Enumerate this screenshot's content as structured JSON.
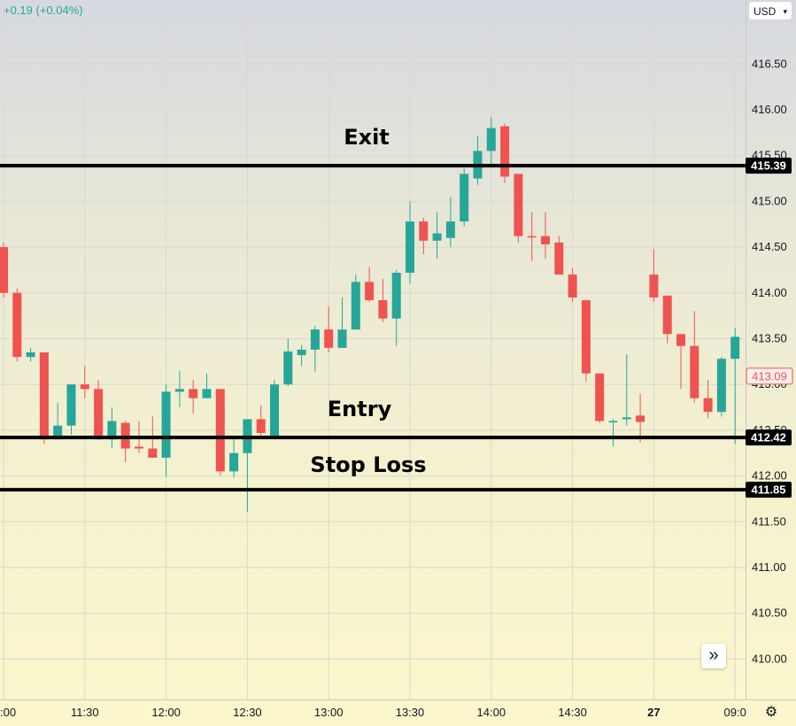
{
  "legend": {
    "change": "+0.19 (+0.04%)"
  },
  "currency": {
    "label": "USD"
  },
  "colors": {
    "up": "#26a69a",
    "down": "#ef5350",
    "level_line": "#000000",
    "current_price": "#ef5350"
  },
  "icons": {
    "scroll": "double-chevron-right-icon",
    "settings": "gear-icon"
  },
  "chart_data": {
    "type": "candlestick",
    "y_ticks": [
      "416.50",
      "416.00",
      "415.50",
      "415.00",
      "414.50",
      "414.00",
      "413.50",
      "413.00",
      "412.50",
      "412.00",
      "411.50",
      "411.00",
      "410.50",
      "410.00"
    ],
    "ylim": [
      409.6,
      417.0
    ],
    "x_ticks": [
      {
        "label": ":00",
        "index": 0
      },
      {
        "label": "11:30",
        "index": 6
      },
      {
        "label": "12:00",
        "index": 12
      },
      {
        "label": "12:30",
        "index": 18
      },
      {
        "label": "13:00",
        "index": 24
      },
      {
        "label": "13:30",
        "index": 30
      },
      {
        "label": "14:00",
        "index": 36
      },
      {
        "label": "14:30",
        "index": 42
      },
      {
        "label": "27",
        "index": 48
      },
      {
        "label": "09:0",
        "index": 54
      }
    ],
    "candles": [
      {
        "i": 0,
        "o": 414.5,
        "h": 414.55,
        "l": 413.95,
        "c": 414.0
      },
      {
        "i": 1,
        "o": 414.0,
        "h": 414.05,
        "l": 413.25,
        "c": 413.3
      },
      {
        "i": 2,
        "o": 413.3,
        "h": 413.4,
        "l": 413.25,
        "c": 413.35
      },
      {
        "i": 3,
        "o": 413.35,
        "h": 413.35,
        "l": 412.35,
        "c": 412.4
      },
      {
        "i": 4,
        "o": 412.4,
        "h": 412.8,
        "l": 412.4,
        "c": 412.55
      },
      {
        "i": 5,
        "o": 412.55,
        "h": 413.0,
        "l": 412.45,
        "c": 413.0
      },
      {
        "i": 6,
        "o": 413.0,
        "h": 413.2,
        "l": 412.85,
        "c": 412.95
      },
      {
        "i": 7,
        "o": 412.95,
        "h": 413.05,
        "l": 412.4,
        "c": 412.4
      },
      {
        "i": 8,
        "o": 412.4,
        "h": 412.75,
        "l": 412.3,
        "c": 412.6
      },
      {
        "i": 9,
        "o": 412.58,
        "h": 412.6,
        "l": 412.15,
        "c": 412.3
      },
      {
        "i": 10,
        "o": 412.32,
        "h": 412.6,
        "l": 412.25,
        "c": 412.3
      },
      {
        "i": 11,
        "o": 412.3,
        "h": 412.65,
        "l": 412.2,
        "c": 412.2
      },
      {
        "i": 12,
        "o": 412.2,
        "h": 413.0,
        "l": 411.99,
        "c": 412.92
      },
      {
        "i": 13,
        "o": 412.92,
        "h": 413.15,
        "l": 412.75,
        "c": 412.95
      },
      {
        "i": 14,
        "o": 412.95,
        "h": 413.05,
        "l": 412.68,
        "c": 412.85
      },
      {
        "i": 15,
        "o": 412.85,
        "h": 413.12,
        "l": 412.85,
        "c": 412.95
      },
      {
        "i": 16,
        "o": 412.95,
        "h": 412.95,
        "l": 412.0,
        "c": 412.05
      },
      {
        "i": 17,
        "o": 412.05,
        "h": 412.42,
        "l": 411.98,
        "c": 412.25
      },
      {
        "i": 18,
        "o": 412.25,
        "h": 412.62,
        "l": 411.61,
        "c": 412.62
      },
      {
        "i": 19,
        "o": 412.62,
        "h": 412.77,
        "l": 412.42,
        "c": 412.47
      },
      {
        "i": 20,
        "o": 412.42,
        "h": 413.05,
        "l": 412.42,
        "c": 413.0
      },
      {
        "i": 21,
        "o": 413.0,
        "h": 413.5,
        "l": 412.98,
        "c": 413.36
      },
      {
        "i": 22,
        "o": 413.32,
        "h": 413.43,
        "l": 413.2,
        "c": 413.38
      },
      {
        "i": 23,
        "o": 413.38,
        "h": 413.64,
        "l": 413.14,
        "c": 413.6
      },
      {
        "i": 24,
        "o": 413.6,
        "h": 413.85,
        "l": 413.35,
        "c": 413.4
      },
      {
        "i": 25,
        "o": 413.4,
        "h": 413.95,
        "l": 413.4,
        "c": 413.6
      },
      {
        "i": 26,
        "o": 413.6,
        "h": 414.2,
        "l": 413.6,
        "c": 414.12
      },
      {
        "i": 27,
        "o": 414.12,
        "h": 414.28,
        "l": 413.9,
        "c": 413.92
      },
      {
        "i": 28,
        "o": 413.92,
        "h": 414.15,
        "l": 413.68,
        "c": 413.72
      },
      {
        "i": 29,
        "o": 413.72,
        "h": 414.25,
        "l": 413.42,
        "c": 414.22
      },
      {
        "i": 30,
        "o": 414.22,
        "h": 415.0,
        "l": 414.1,
        "c": 414.78
      },
      {
        "i": 31,
        "o": 414.78,
        "h": 414.82,
        "l": 414.42,
        "c": 414.57
      },
      {
        "i": 32,
        "o": 414.57,
        "h": 414.88,
        "l": 414.37,
        "c": 414.65
      },
      {
        "i": 33,
        "o": 414.6,
        "h": 415.05,
        "l": 414.5,
        "c": 414.78
      },
      {
        "i": 34,
        "o": 414.78,
        "h": 415.36,
        "l": 414.73,
        "c": 415.3
      },
      {
        "i": 35,
        "o": 415.25,
        "h": 415.72,
        "l": 415.18,
        "c": 415.55
      },
      {
        "i": 36,
        "o": 415.55,
        "h": 415.92,
        "l": 415.4,
        "c": 415.8
      },
      {
        "i": 37,
        "o": 415.82,
        "h": 415.85,
        "l": 415.2,
        "c": 415.27
      },
      {
        "i": 38,
        "o": 415.3,
        "h": 415.3,
        "l": 414.55,
        "c": 414.62
      },
      {
        "i": 39,
        "o": 414.62,
        "h": 414.88,
        "l": 414.35,
        "c": 414.61
      },
      {
        "i": 40,
        "o": 414.62,
        "h": 414.88,
        "l": 414.37,
        "c": 414.53
      },
      {
        "i": 41,
        "o": 414.55,
        "h": 414.62,
        "l": 414.2,
        "c": 414.2
      },
      {
        "i": 42,
        "o": 414.2,
        "h": 414.27,
        "l": 413.9,
        "c": 413.95
      },
      {
        "i": 43,
        "o": 413.92,
        "h": 413.92,
        "l": 413.03,
        "c": 413.12
      },
      {
        "i": 44,
        "o": 413.12,
        "h": 413.12,
        "l": 412.58,
        "c": 412.6
      },
      {
        "i": 45,
        "o": 412.6,
        "h": 412.62,
        "l": 412.32,
        "c": 412.6
      },
      {
        "i": 46,
        "o": 412.62,
        "h": 413.33,
        "l": 412.55,
        "c": 412.64
      },
      {
        "i": 47,
        "o": 412.66,
        "h": 412.9,
        "l": 412.37,
        "c": 412.59
      },
      {
        "i": 48,
        "o": 414.2,
        "h": 414.48,
        "l": 413.9,
        "c": 413.95
      },
      {
        "i": 49,
        "o": 413.97,
        "h": 413.97,
        "l": 413.45,
        "c": 413.55
      },
      {
        "i": 50,
        "o": 413.55,
        "h": 413.55,
        "l": 412.95,
        "c": 413.42
      },
      {
        "i": 51,
        "o": 413.42,
        "h": 413.8,
        "l": 412.8,
        "c": 412.85
      },
      {
        "i": 52,
        "o": 412.85,
        "h": 413.05,
        "l": 412.63,
        "c": 412.7
      },
      {
        "i": 53,
        "o": 412.7,
        "h": 413.3,
        "l": 412.65,
        "c": 413.28
      },
      {
        "i": 54,
        "o": 413.28,
        "h": 413.62,
        "l": 412.35,
        "c": 413.52
      }
    ],
    "levels": [
      {
        "label": "Exit",
        "value": 415.39,
        "price_label": "415.39"
      },
      {
        "label": "Entry",
        "value": 412.42,
        "price_label": "412.42"
      },
      {
        "label": "Stop Loss",
        "value": 411.85,
        "price_label": "411.85"
      }
    ],
    "current_price": {
      "value": 413.09,
      "label": "413.09"
    },
    "grid": true
  }
}
